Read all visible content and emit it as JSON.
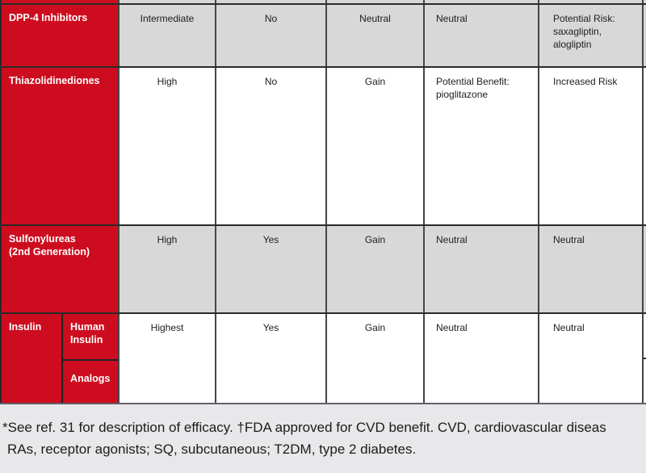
{
  "colors": {
    "accent_red": "#cd0d1f",
    "row_gray": "#d8d8d8",
    "row_white": "#ffffff",
    "page_background": "#e8e8ea",
    "border_dark": "#2a2a2a"
  },
  "table": {
    "rows": [
      {
        "label": "DPP-4 Inhibitors",
        "cells": [
          "Intermediate",
          "No",
          "Neutral",
          "Neutral",
          "Potential Risk:\nsaxagliptin,\nalogliptin"
        ]
      },
      {
        "label": "Thiazolidinediones",
        "cells": [
          "High",
          "No",
          "Gain",
          "Potential Benefit:\npioglitazone",
          "Increased Risk"
        ]
      },
      {
        "label": "Sulfonylureas\n(2nd Generation)",
        "cells": [
          "High",
          "Yes",
          "Gain",
          "Neutral",
          "Neutral"
        ]
      },
      {
        "label": "Insulin",
        "sub_labels": [
          "Human\nInsulin",
          "Analogs"
        ],
        "cells": [
          "Highest",
          "Yes",
          "Gain",
          "Neutral",
          "Neutral"
        ]
      }
    ]
  },
  "footnote": {
    "line1": "*See ref. 31 for description of efficacy. †FDA approved for CVD benefit. CVD, cardiovascular diseas",
    "line2": "RAs, receptor agonists; SQ, subcutaneous; T2DM, type 2 diabetes."
  }
}
